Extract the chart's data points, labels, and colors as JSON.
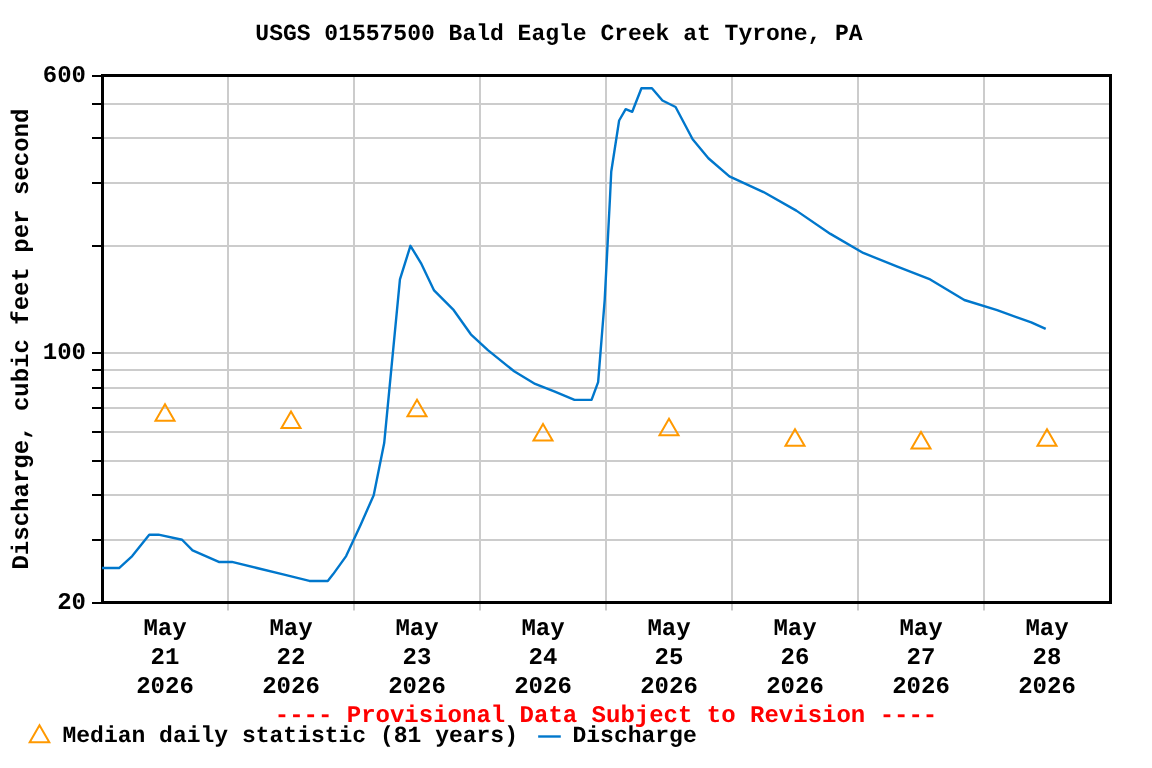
{
  "chart_data": {
    "type": "line",
    "title": "USGS 01557500 Bald Eagle Creek at Tyrone, PA",
    "ylabel": "Discharge, cubic feet per second",
    "annotations": [
      "---- Provisional Data Subject to Revision ----"
    ],
    "log": "y",
    "grid": true,
    "legend": "bottom",
    "xlim": [
      "2026-05-21T00:00",
      "2026-05-29T00:00"
    ],
    "xticks": [
      {
        "value": "2026-05-21T12:00",
        "label": "May 21 2026"
      },
      {
        "value": "2026-05-22T00:00",
        "label": null
      },
      {
        "value": "2026-05-22T12:00",
        "label": "May 22 2026"
      },
      {
        "value": "2026-05-23T00:00",
        "label": null
      },
      {
        "value": "2026-05-23T12:00",
        "label": "May 23 2026"
      },
      {
        "value": "2026-05-24T00:00",
        "label": null
      },
      {
        "value": "2026-05-24T12:00",
        "label": "May 24 2026"
      },
      {
        "value": "2026-05-25T00:00",
        "label": null
      },
      {
        "value": "2026-05-25T12:00",
        "label": "May 25 2026"
      },
      {
        "value": "2026-05-26T00:00",
        "label": null
      },
      {
        "value": "2026-05-26T12:00",
        "label": "May 26 2026"
      },
      {
        "value": "2026-05-27T00:00",
        "label": null
      },
      {
        "value": "2026-05-27T12:00",
        "label": "May 27 2026"
      },
      {
        "value": "2026-05-28T00:00",
        "label": null
      },
      {
        "value": "2026-05-28T12:00",
        "label": "May 28 2026"
      }
    ],
    "ylim": [
      20,
      600
    ],
    "yticks": [
      20,
      {
        "value": 30,
        "label": null
      },
      {
        "value": 40,
        "label": null
      },
      {
        "value": 50,
        "label": null
      },
      {
        "value": 60,
        "label": null
      },
      {
        "value": 70,
        "label": null
      },
      {
        "value": 80,
        "label": null
      },
      {
        "value": 90,
        "label": null
      },
      100,
      {
        "value": 200,
        "label": null
      },
      {
        "value": 300,
        "label": null
      },
      {
        "value": 400,
        "label": null
      },
      {
        "value": 500,
        "label": null
      },
      600
    ],
    "series": [
      {
        "name": "Median daily statistic (81 years)",
        "type": "scatter",
        "marker": "triangle",
        "color": "#ff9900",
        "x": [
          "2026-05-21T12:00",
          "2026-05-22T12:00",
          "2026-05-23T12:00",
          "2026-05-24T12:00",
          "2026-05-25T12:00",
          "2026-05-26T12:00",
          "2026-05-27T12:00",
          "2026-05-28T12:00"
        ],
        "values": [
          67,
          64,
          69,
          59,
          61,
          57,
          56,
          57
        ]
      },
      {
        "name": "Discharge",
        "marker": "none",
        "color": "#0077cc",
        "x": [
          "2026-05-21T00:00",
          "2026-05-21T03:15",
          "2026-05-21T05:45",
          "2026-05-21T09:00",
          "2026-05-21T10:45",
          "2026-05-21T15:15",
          "2026-05-21T17:15",
          "2026-05-21T22:15",
          "2026-05-22T00:45",
          "2026-05-22T05:30",
          "2026-05-22T10:30",
          "2026-05-22T15:30",
          "2026-05-22T19:00",
          "2026-05-22T20:00",
          "2026-05-22T22:30",
          "2026-05-23T01:15",
          "2026-05-23T03:45",
          "2026-05-23T05:45",
          "2026-05-23T07:00",
          "2026-05-23T08:45",
          "2026-05-23T10:45",
          "2026-05-23T12:45",
          "2026-05-23T15:15",
          "2026-05-23T19:00",
          "2026-05-23T22:15",
          "2026-05-24T01:30",
          "2026-05-24T06:30",
          "2026-05-24T10:30",
          "2026-05-24T14:15",
          "2026-05-24T18:00",
          "2026-05-24T21:15",
          "2026-05-24T22:30",
          "2026-05-24T23:45",
          "2026-05-25T00:45",
          "2026-05-25T01:00",
          "2026-05-25T02:30",
          "2026-05-25T03:45",
          "2026-05-25T05:00",
          "2026-05-25T06:45",
          "2026-05-25T08:45",
          "2026-05-25T10:45",
          "2026-05-25T13:15",
          "2026-05-25T16:30",
          "2026-05-25T19:30",
          "2026-05-25T23:30",
          "2026-05-26T06:00",
          "2026-05-26T12:15",
          "2026-05-26T18:45",
          "2026-05-27T01:00",
          "2026-05-27T07:30",
          "2026-05-27T13:45",
          "2026-05-27T20:15",
          "2026-05-28T02:30",
          "2026-05-28T09:00",
          "2026-05-28T11:45"
        ],
        "values": [
          25,
          25,
          27,
          31,
          31,
          30,
          28,
          26,
          26,
          25,
          24,
          23,
          23,
          24,
          27,
          33,
          40,
          56,
          87,
          161,
          200,
          179,
          150,
          132,
          113,
          102,
          89,
          82,
          78,
          74,
          74,
          83,
          141,
          271,
          323,
          449,
          483,
          475,
          553,
          553,
          511,
          490,
          398,
          352,
          313,
          283,
          251,
          216,
          191,
          175,
          161,
          141,
          132,
          122,
          117
        ]
      }
    ]
  }
}
